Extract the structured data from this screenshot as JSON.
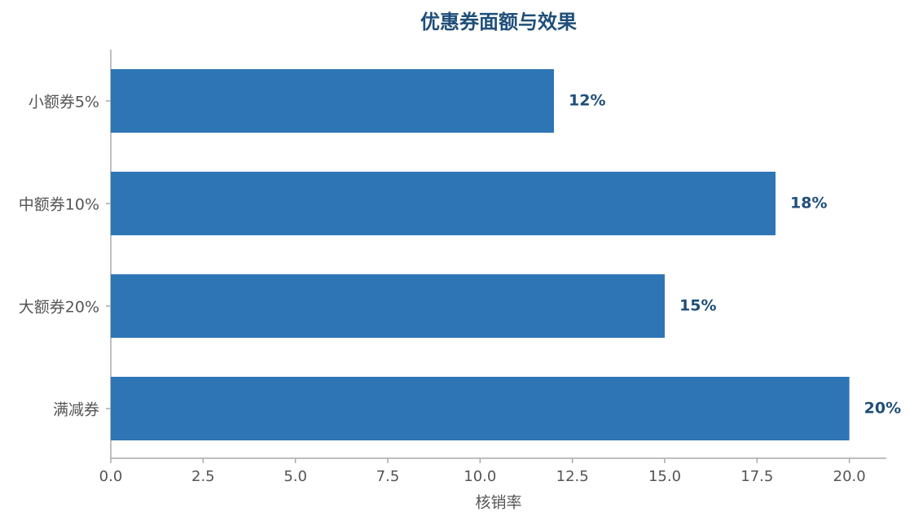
{
  "chart_data": {
    "type": "barh",
    "title": "优惠券面额与效果",
    "xlabel": "核销率",
    "categories": [
      "小额券5%",
      "中额券10%",
      "大额券20%",
      "满减券"
    ],
    "values": [
      12,
      18,
      15,
      20
    ],
    "value_labels": [
      "12%",
      "18%",
      "15%",
      "20%"
    ],
    "color": "#2e75b6",
    "xlim": [
      0,
      21
    ],
    "xticks": [
      {
        "value": 0,
        "label": "0.0"
      },
      2.5,
      {
        "value": 5,
        "label": "5.0"
      },
      7.5,
      {
        "value": 10,
        "label": "10.0"
      },
      12.5,
      {
        "value": 15,
        "label": "15.0"
      },
      17.5,
      {
        "value": 20,
        "label": "20.0"
      }
    ],
    "grid": false
  }
}
